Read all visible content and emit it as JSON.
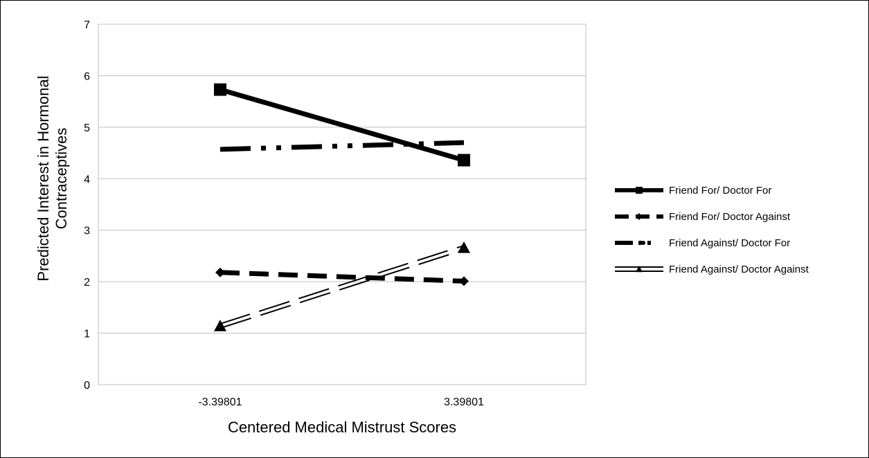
{
  "chart_data": {
    "type": "line",
    "categories": [
      "-3.39801",
      "3.39801"
    ],
    "xlabel": "Centered Medical Mistrust Scores",
    "ylabel": "Predicted Interest in Hormonal Contraceptives",
    "ylabel_lines": [
      "Predicted Interest in Hormonal",
      "Contraceptives"
    ],
    "ylim": [
      0,
      7
    ],
    "yticks": [
      "0",
      "1",
      "2",
      "3",
      "4",
      "5",
      "6",
      "7"
    ],
    "grid": true,
    "legend_position": "right",
    "series": [
      {
        "name": "Friend For/ Doctor For",
        "values": [
          5.73,
          4.36
        ],
        "style": "solid",
        "marker": "square",
        "color": "#000000"
      },
      {
        "name": "Friend For/ Doctor Against",
        "values": [
          2.18,
          2.01
        ],
        "style": "dashed",
        "marker": "diamond",
        "color": "#000000"
      },
      {
        "name": "Friend Against/ Doctor For",
        "values": [
          4.57,
          4.7
        ],
        "style": "dashdot",
        "marker": "none",
        "color": "#000000"
      },
      {
        "name": "Friend Against/ Doctor Against",
        "values": [
          1.14,
          2.66
        ],
        "style": "double",
        "marker": "triangle",
        "color": "#000000"
      }
    ]
  }
}
